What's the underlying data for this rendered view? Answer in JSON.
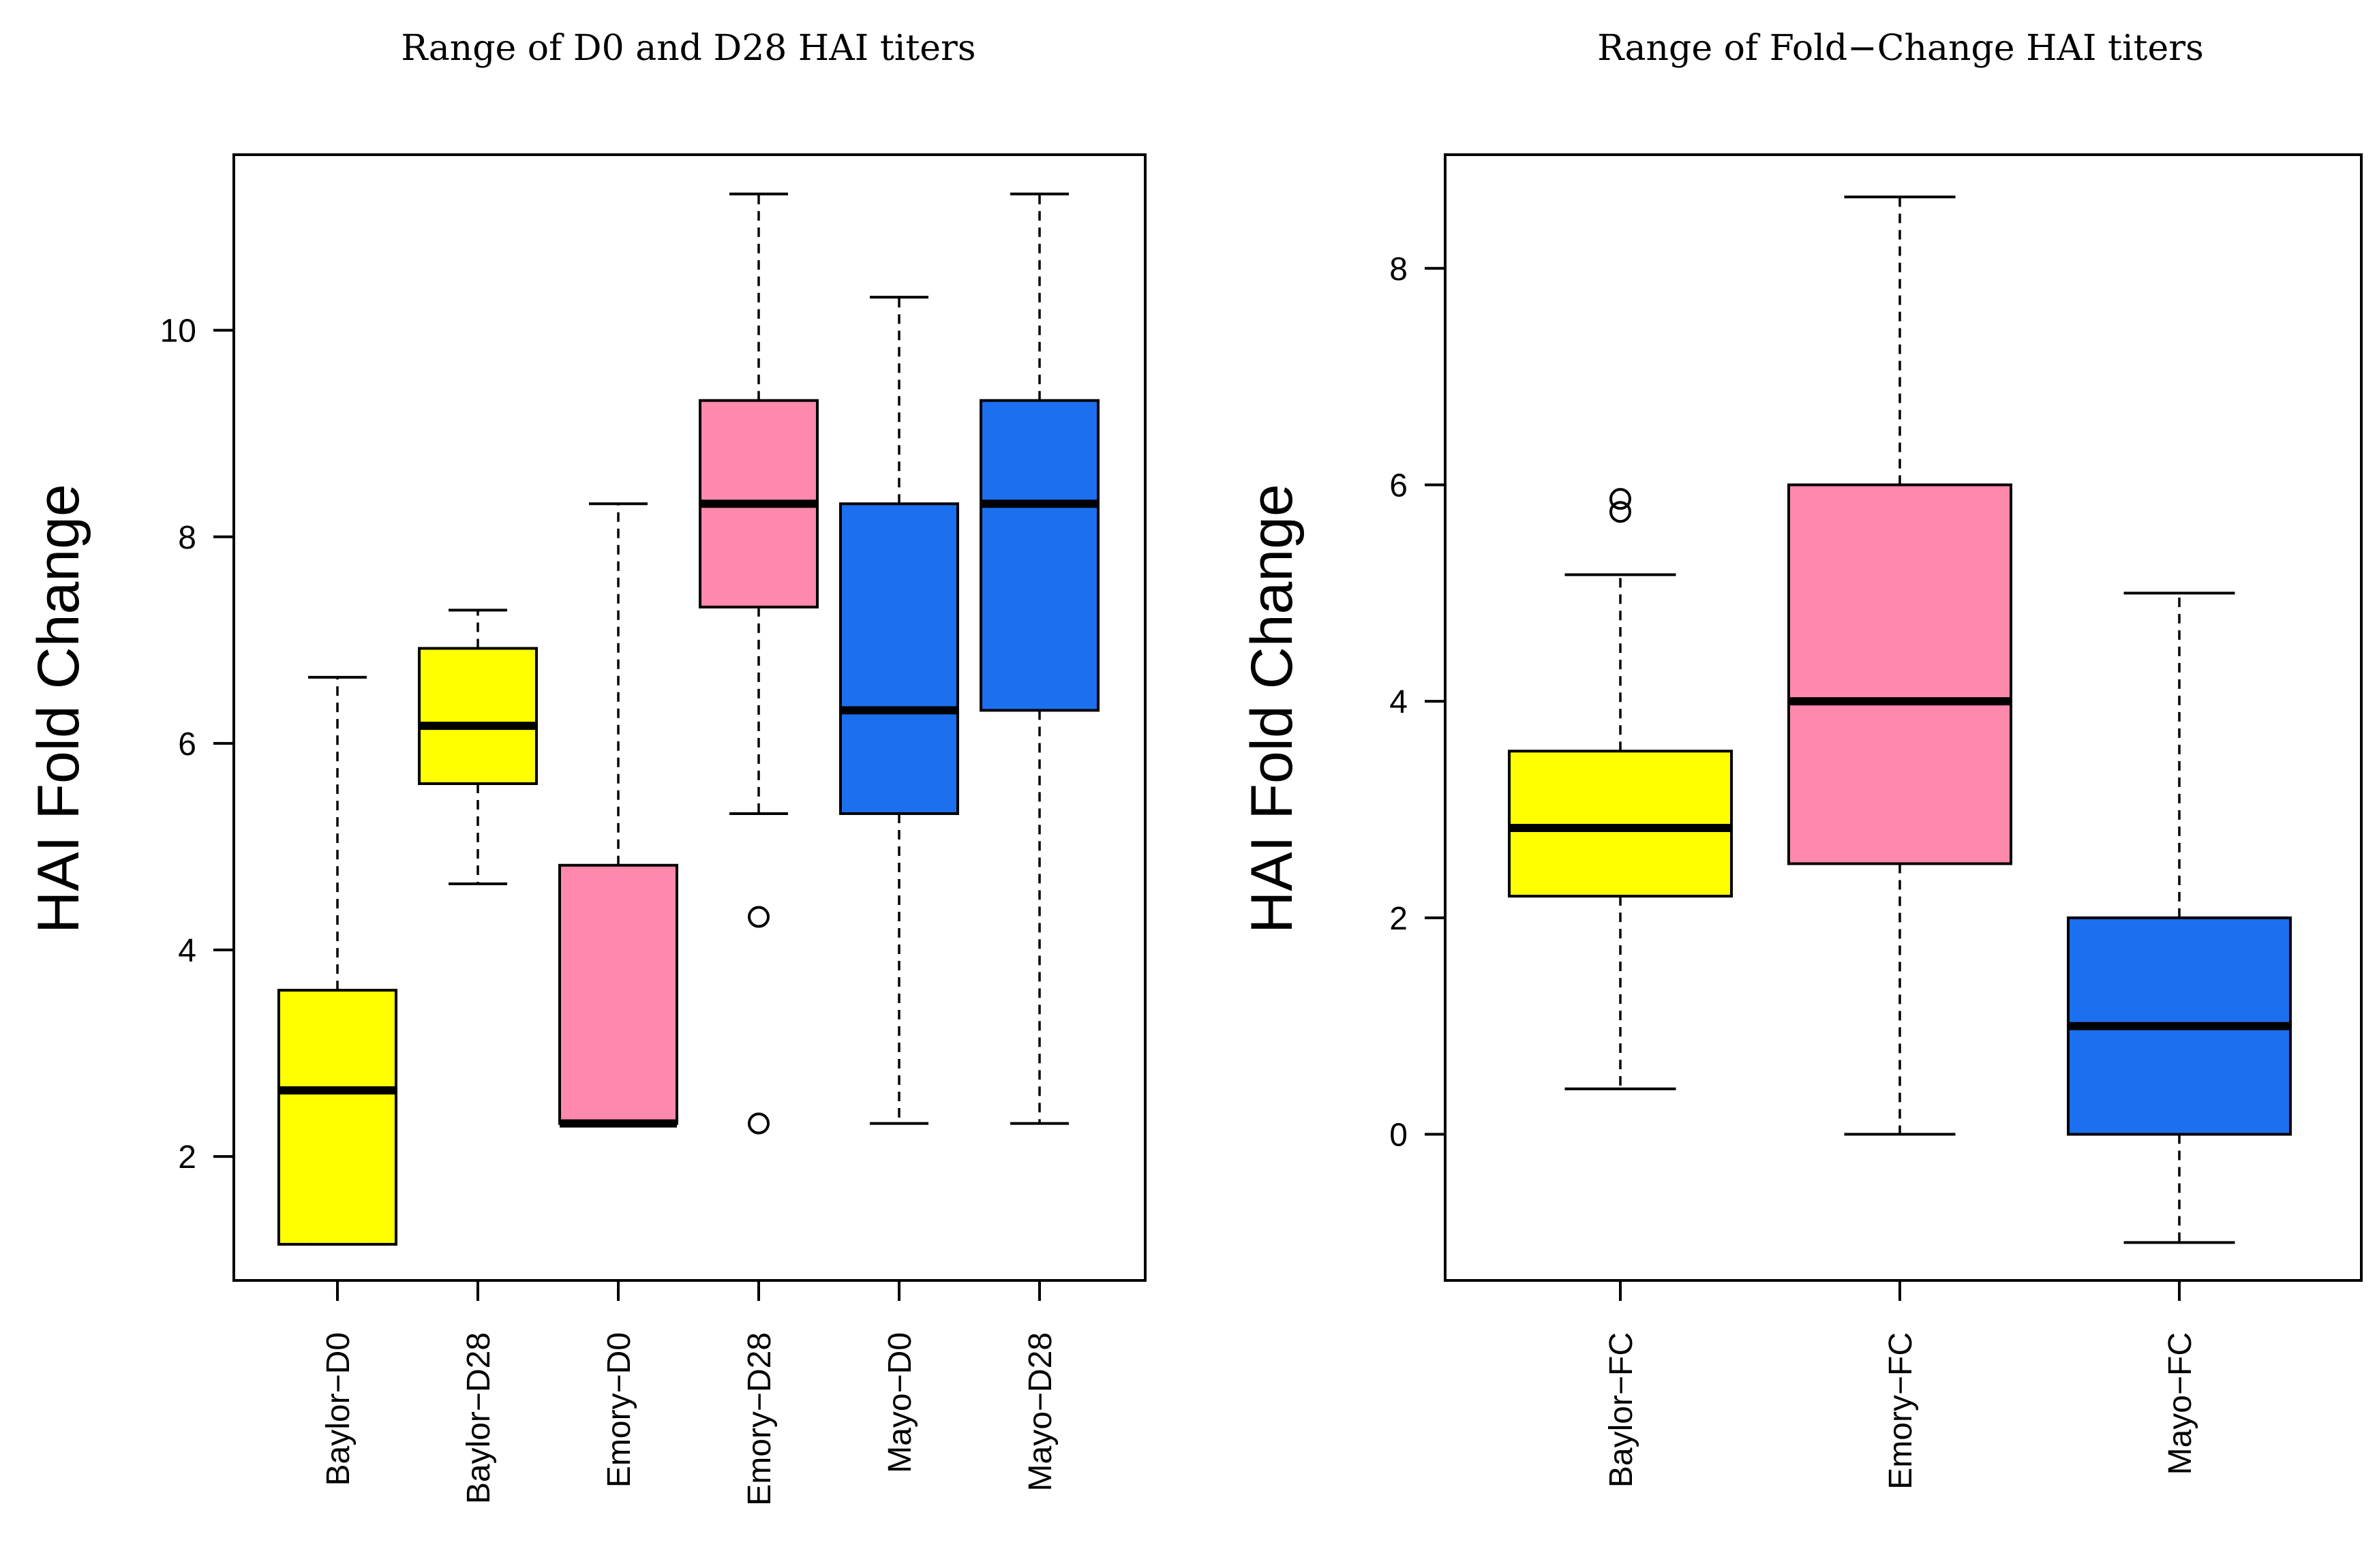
{
  "chart_data": [
    {
      "type": "boxplot",
      "title": "Range of D0 and D28 HAI titers",
      "ylabel": "HAI Fold Change",
      "ylim": [
        0.8,
        11.7
      ],
      "yticks": [
        2,
        4,
        6,
        8,
        10
      ],
      "categories": [
        "Baylor−D0",
        "Baylor−D28",
        "Emory−D0",
        "Emory−D28",
        "Mayo−D0",
        "Mayo−D28"
      ],
      "boxes": [
        {
          "min": 1.15,
          "q1": 1.15,
          "median": 2.64,
          "q3": 3.61,
          "max": 6.64,
          "outliers": [],
          "color": "#ffff00"
        },
        {
          "min": 4.64,
          "q1": 5.61,
          "median": 6.17,
          "q3": 6.92,
          "max": 7.29,
          "outliers": [],
          "color": "#ffff00"
        },
        {
          "min": 2.32,
          "q1": 2.32,
          "median": 2.32,
          "q3": 4.82,
          "max": 8.32,
          "outliers": [],
          "color": "#ff88ad"
        },
        {
          "min": 5.32,
          "q1": 7.32,
          "median": 8.32,
          "q3": 9.32,
          "max": 11.32,
          "outliers": [
            4.32,
            2.32
          ],
          "color": "#ff88ad"
        },
        {
          "min": 2.32,
          "q1": 5.32,
          "median": 6.32,
          "q3": 8.32,
          "max": 10.32,
          "outliers": [],
          "color": "#1c6fef"
        },
        {
          "min": 2.32,
          "q1": 6.32,
          "median": 8.32,
          "q3": 9.32,
          "max": 11.32,
          "outliers": [],
          "color": "#1c6fef"
        }
      ]
    },
    {
      "type": "boxplot",
      "title": "Range of Fold−Change HAI titers",
      "ylabel": "HAI Fold Change",
      "ylim": [
        -1.35,
        9.05
      ],
      "yticks": [
        0,
        2,
        4,
        6,
        8
      ],
      "categories": [
        "Baylor−FC",
        "Emory−FC",
        "Mayo−FC"
      ],
      "boxes": [
        {
          "min": 0.42,
          "q1": 2.2,
          "median": 2.83,
          "q3": 3.54,
          "max": 5.17,
          "outliers": [
            5.75,
            5.87
          ],
          "color": "#ffff00"
        },
        {
          "min": 0.0,
          "q1": 2.5,
          "median": 4.0,
          "q3": 6.0,
          "max": 8.66,
          "outliers": [],
          "color": "#ff88ad"
        },
        {
          "min": -1.0,
          "q1": 0.0,
          "median": 1.0,
          "q3": 2.0,
          "max": 5.0,
          "outliers": [],
          "color": "#1c6fef"
        }
      ]
    }
  ]
}
